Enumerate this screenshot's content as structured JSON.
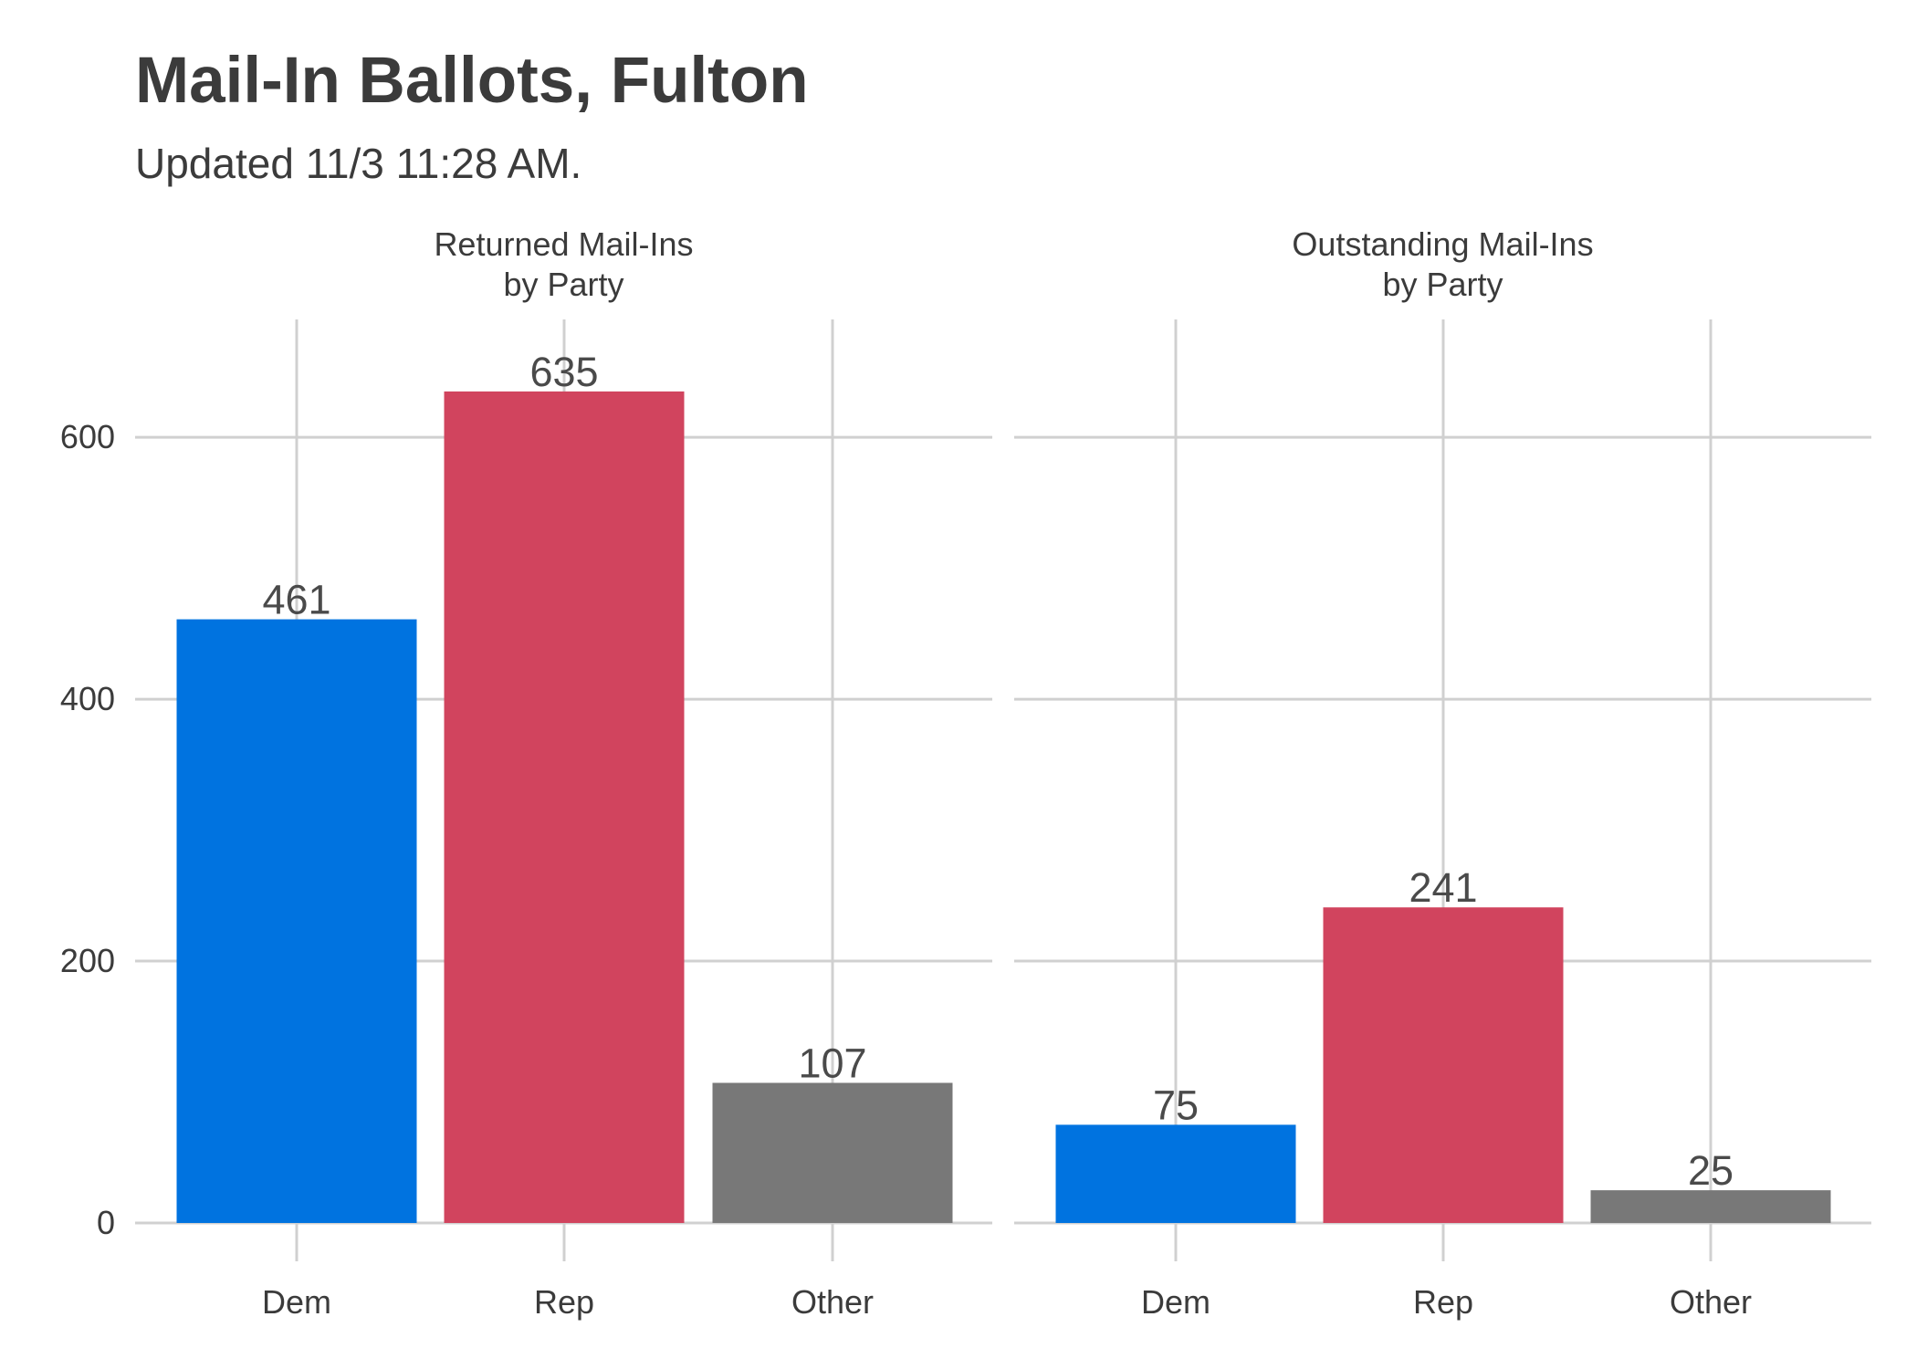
{
  "title": "Mail-In Ballots, Fulton",
  "subtitle": "Updated 11/3 11:28 AM.",
  "chart_data": {
    "type": "bar",
    "ylim": [
      0,
      690
    ],
    "yticks": [
      0,
      200,
      400,
      600
    ],
    "grid": true,
    "categories": [
      "Dem",
      "Rep",
      "Other"
    ],
    "colors": {
      "Dem": "#0073e0",
      "Rep": "#d1445e",
      "Other": "#787878"
    },
    "panels": [
      {
        "title_lines": [
          "Returned Mail-Ins",
          "by Party"
        ],
        "values": [
          461,
          635,
          107
        ]
      },
      {
        "title_lines": [
          "Outstanding Mail-Ins",
          "by Party"
        ],
        "values": [
          75,
          241,
          25
        ]
      }
    ]
  }
}
